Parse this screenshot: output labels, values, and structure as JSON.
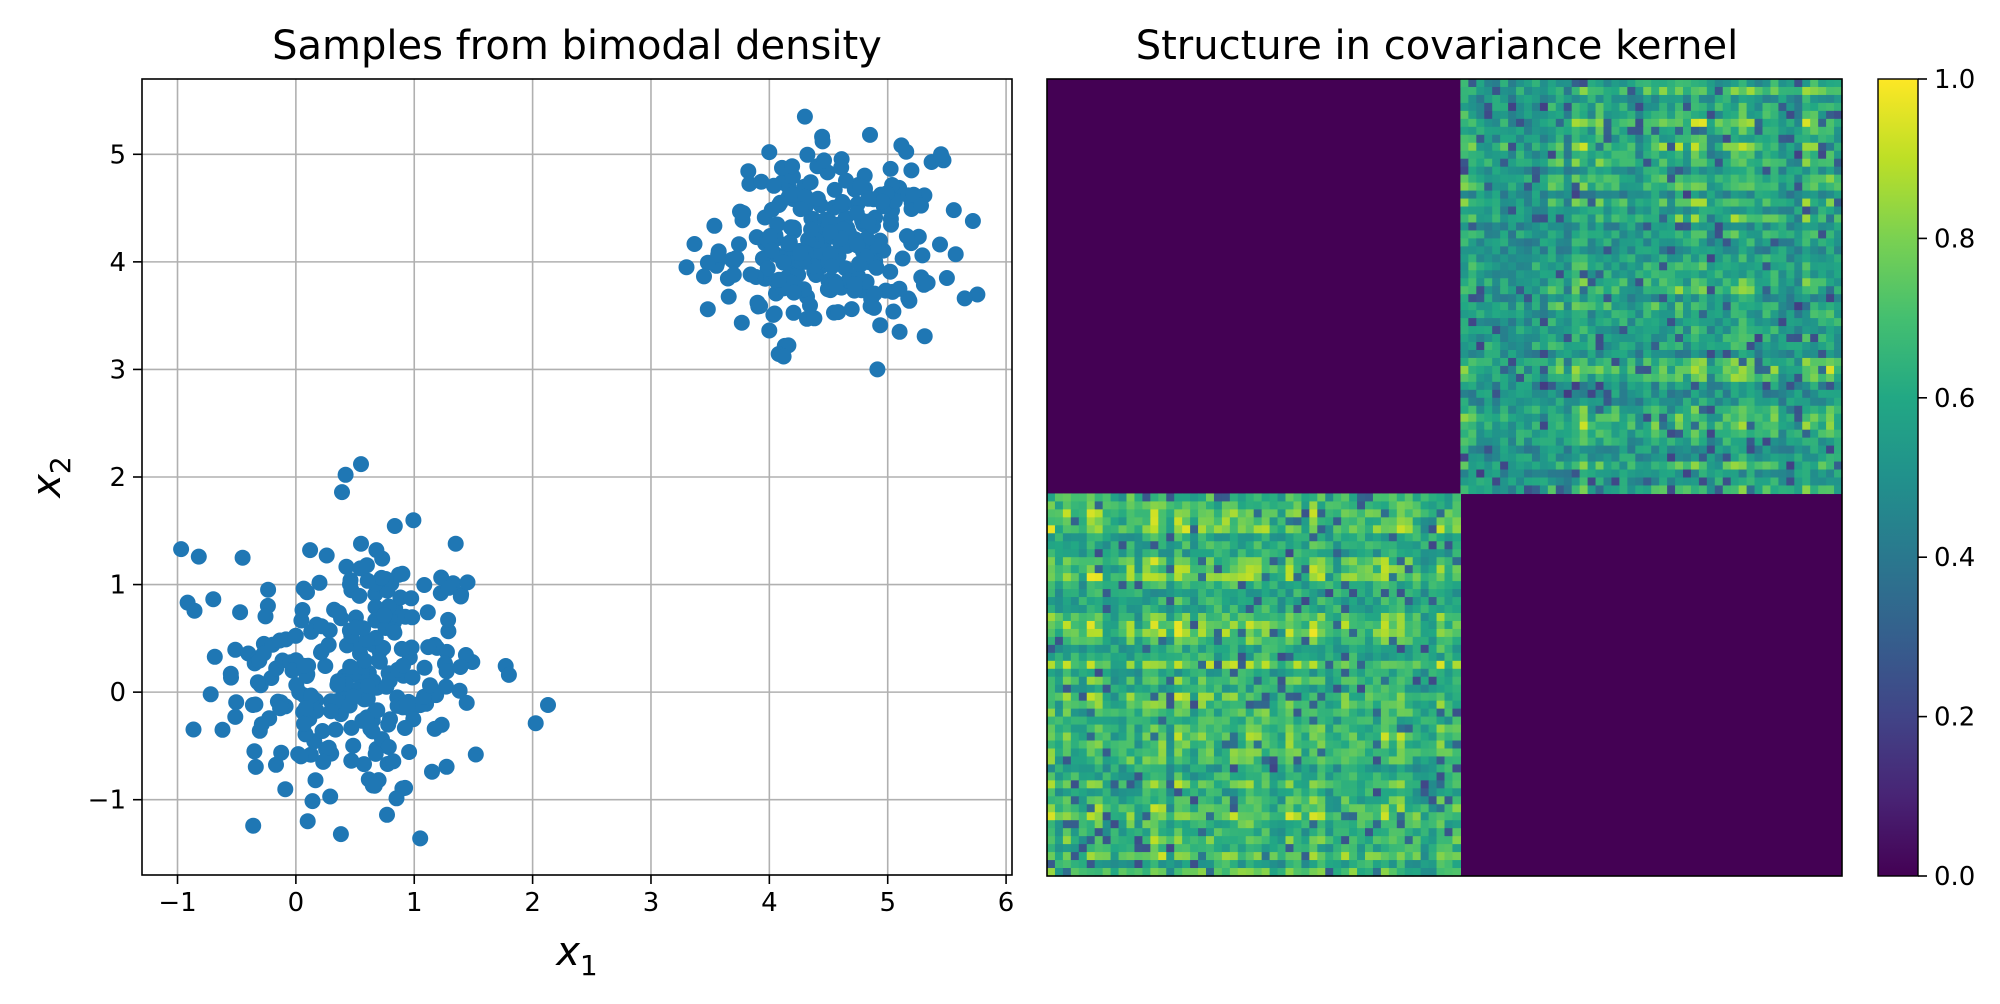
{
  "chart_data": [
    {
      "type": "scatter",
      "title": "Samples from bimodal density",
      "xlabel": "x",
      "xlabel_sub": "1",
      "ylabel": "x",
      "ylabel_sub": "2",
      "xlim": [
        -1.3,
        6.05
      ],
      "ylim": [
        -1.7,
        5.7
      ],
      "xticks": [
        -1,
        0,
        1,
        2,
        3,
        4,
        5,
        6
      ],
      "yticks": [
        -1,
        0,
        1,
        2,
        3,
        4,
        5
      ],
      "grid": true,
      "color": "#1f77b4",
      "clusters": [
        {
          "center": [
            0.5,
            0.15
          ],
          "std": [
            0.55,
            0.6
          ],
          "count": 250
        },
        {
          "center": [
            4.5,
            4.15
          ],
          "std": [
            0.45,
            0.4
          ],
          "count": 250
        }
      ],
      "points": [
        [
          -0.97,
          1.33
        ],
        [
          -0.82,
          1.26
        ],
        [
          -0.45,
          1.25
        ],
        [
          -0.72,
          -0.02
        ],
        [
          -0.62,
          -0.35
        ],
        [
          -0.55,
          0.17
        ],
        [
          -0.35,
          -0.55
        ],
        [
          0.1,
          -1.2
        ],
        [
          0.38,
          -1.32
        ],
        [
          0.29,
          -0.97
        ],
        [
          0.77,
          -1.14
        ],
        [
          1.05,
          -1.36
        ],
        [
          1.15,
          -0.74
        ],
        [
          1.52,
          -0.58
        ],
        [
          1.8,
          0.16
        ],
        [
          2.13,
          -0.12
        ],
        [
          1.35,
          1.38
        ],
        [
          1.45,
          1.02
        ],
        [
          0.55,
          2.12
        ],
        [
          0.42,
          2.02
        ],
        [
          0.39,
          1.86
        ],
        [
          0.55,
          1.38
        ],
        [
          0.12,
          1.32
        ],
        [
          0.26,
          1.27
        ],
        [
          0.68,
          1.32
        ],
        [
          0.6,
          1.18
        ],
        [
          0.9,
          1.1
        ],
        [
          3.3,
          3.95
        ],
        [
          3.48,
          3.56
        ],
        [
          3.7,
          3.88
        ],
        [
          4.12,
          3.12
        ],
        [
          4.3,
          5.35
        ],
        [
          4.45,
          5.12
        ],
        [
          4.85,
          5.18
        ],
        [
          5.45,
          5.0
        ],
        [
          5.1,
          3.35
        ],
        [
          5.72,
          4.38
        ],
        [
          5.65,
          3.66
        ],
        [
          5.5,
          3.85
        ],
        [
          5.2,
          4.85
        ],
        [
          3.9,
          3.62
        ],
        [
          4.0,
          5.02
        ]
      ]
    },
    {
      "type": "heatmap",
      "title": "Structure in covariance kernel",
      "blocks": [
        {
          "rows": "0-249",
          "cols": "0-249",
          "value_range": [
            0.3,
            1.0
          ]
        },
        {
          "rows": "250-499",
          "cols": "250-499",
          "value_range": [
            0.2,
            1.0
          ]
        },
        {
          "rows": "off-diagonal",
          "cols": "off-diagonal",
          "value": 0.0
        }
      ],
      "diagonal_value": 1.0,
      "colormap": "viridis",
      "colorbar_ticks": [
        "0.0",
        "0.2",
        "0.4",
        "0.6",
        "0.8",
        "1.0"
      ],
      "clim": [
        0,
        1
      ]
    }
  ]
}
